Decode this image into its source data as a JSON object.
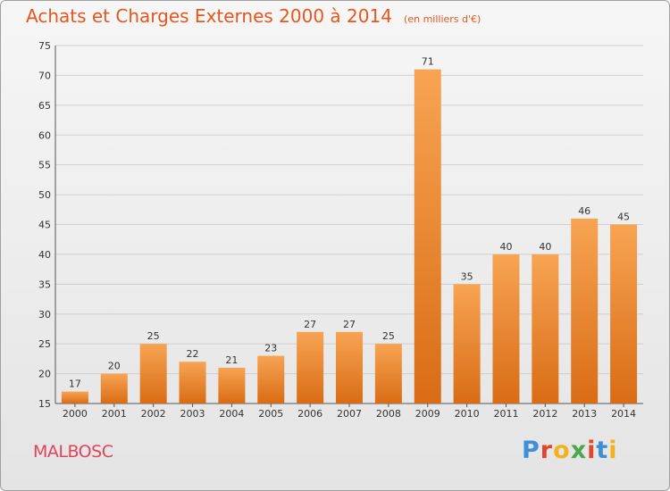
{
  "chart_data": {
    "type": "bar",
    "title": "Achats et Charges Externes 2000 à 2014",
    "unit": "(en milliers d'€)",
    "categories": [
      "2000",
      "2001",
      "2002",
      "2003",
      "2004",
      "2005",
      "2006",
      "2007",
      "2008",
      "2009",
      "2010",
      "2011",
      "2012",
      "2013",
      "2014"
    ],
    "values": [
      17,
      20,
      25,
      22,
      21,
      23,
      27,
      27,
      25,
      71,
      35,
      40,
      40,
      46,
      45
    ],
    "ylim": [
      15,
      75
    ],
    "yticks": [
      15,
      20,
      25,
      30,
      35,
      40,
      45,
      50,
      55,
      60,
      65,
      70,
      75
    ],
    "grid": true,
    "bar_color": "#f08a2c",
    "xlabel": "",
    "ylabel": ""
  },
  "commune": "MALBOSC",
  "logo": {
    "text": "Proxiti",
    "colors": [
      "#3f8fd8",
      "#e2452d",
      "#f2b21d",
      "#4aa84a",
      "#e2452d",
      "#3f8fd8",
      "#f2b21d"
    ]
  }
}
